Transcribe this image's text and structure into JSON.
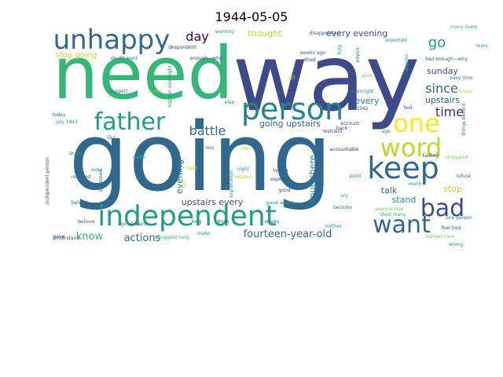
{
  "title": "1944-05-05",
  "palette": [
    "#440154",
    "#482878",
    "#3e4a89",
    "#31688e",
    "#26828e",
    "#1f9e89",
    "#35b779",
    "#6ece58",
    "#b5de2b",
    "#fde725"
  ],
  "words": [
    {
      "text": "way",
      "size": 118,
      "c": 2
    },
    {
      "text": "need",
      "size": 92,
      "c": 6
    },
    {
      "text": "going",
      "size": 120,
      "c": 3
    },
    {
      "text": "unhappy",
      "size": 34,
      "c": 3
    },
    {
      "text": "person",
      "size": 38,
      "c": 4
    },
    {
      "text": "father",
      "size": 30,
      "c": 5
    },
    {
      "text": "independent",
      "size": 36,
      "c": 5
    },
    {
      "text": "keep",
      "size": 38,
      "c": 3
    },
    {
      "text": "word",
      "size": 32,
      "c": 8
    },
    {
      "text": "one",
      "size": 32,
      "c": 9
    },
    {
      "text": "bad",
      "size": 30,
      "c": 2
    },
    {
      "text": "want",
      "size": 30,
      "c": 3
    },
    {
      "text": "since",
      "size": 16,
      "c": 3
    },
    {
      "text": "time",
      "size": 16,
      "c": 1
    },
    {
      "text": "go",
      "size": 18,
      "c": 5
    },
    {
      "text": "day",
      "size": 16,
      "c": 0
    },
    {
      "text": "battle",
      "size": 16,
      "c": 3
    },
    {
      "text": "every evening",
      "size": 11,
      "c": 2
    },
    {
      "text": "thought",
      "size": 11,
      "c": 8
    },
    {
      "text": "sunday",
      "size": 11,
      "c": 2
    },
    {
      "text": "upstairs",
      "size": 11,
      "c": 3
    },
    {
      "text": "every",
      "size": 11,
      "c": 4
    },
    {
      "text": "going upstairs",
      "size": 11,
      "c": 3
    },
    {
      "text": "evening",
      "size": 11,
      "c": 4
    },
    {
      "text": "knutschere",
      "size": 11,
      "c": 4
    },
    {
      "text": "stand",
      "size": 11,
      "c": 5
    },
    {
      "text": "stop",
      "size": 11,
      "c": 8
    },
    {
      "text": "talk",
      "size": 11,
      "c": 3
    },
    {
      "text": "upstairs every",
      "size": 11,
      "c": 2
    },
    {
      "text": "fourteen-year-old",
      "size": 13,
      "c": 3
    },
    {
      "text": "know",
      "size": 13,
      "c": 6
    },
    {
      "text": "actions",
      "size": 13,
      "c": 3
    },
    {
      "text": "stop going",
      "size": 10,
      "c": 8
    },
    {
      "text": "wanting",
      "size": 6,
      "c": 5
    },
    {
      "text": "disappointed",
      "size": 6,
      "c": 3
    },
    {
      "text": "expected",
      "size": 6,
      "c": 5
    },
    {
      "text": "many tears",
      "size": 6,
      "c": 6
    },
    {
      "text": "despondent",
      "size": 6,
      "c": 2
    },
    {
      "text": "enough—why",
      "size": 6,
      "c": 2
    },
    {
      "text": "weeks ago",
      "size": 6,
      "c": 3
    },
    {
      "text": "shed",
      "size": 6,
      "c": 2
    },
    {
      "text": "doubt want",
      "size": 6,
      "c": 4
    },
    {
      "text": "bad enough—why",
      "size": 6,
      "c": 3
    },
    {
      "text": "easy time",
      "size": 6,
      "c": 4
    },
    {
      "text": "give",
      "size": 6,
      "c": 7
    },
    {
      "text": "overnight",
      "size": 6,
      "c": 5
    },
    {
      "text": "support",
      "size": 6,
      "c": 3
    },
    {
      "text": "knew",
      "size": 6,
      "c": 7
    },
    {
      "text": "else",
      "size": 6,
      "c": 4
    },
    {
      "text": "1942",
      "size": 6,
      "c": 3
    },
    {
      "text": "account",
      "size": 6,
      "c": 2
    },
    {
      "text": "back",
      "size": 6,
      "c": 2
    },
    {
      "text": "restraint",
      "size": 6,
      "c": 2
    },
    {
      "text": "feel",
      "size": 6,
      "c": 3
    },
    {
      "text": "today",
      "size": 6,
      "c": 3
    },
    {
      "text": "july 1942",
      "size": 6,
      "c": 5
    },
    {
      "text": "like",
      "size": 6,
      "c": 4
    },
    {
      "text": "less",
      "size": 6,
      "c": 4
    },
    {
      "text": "say",
      "size": 6,
      "c": 8
    },
    {
      "text": "accountable",
      "size": 6,
      "c": 1
    },
    {
      "text": "talking",
      "size": 6,
      "c": 2
    },
    {
      "text": "struggled",
      "size": 6,
      "c": 7
    },
    {
      "text": "laugh",
      "size": 6,
      "c": 5
    },
    {
      "text": "doubt",
      "size": 6,
      "c": 6
    },
    {
      "text": "hard",
      "size": 6,
      "c": 8
    },
    {
      "text": "night",
      "size": 6,
      "c": 5
    },
    {
      "text": "telling",
      "size": 6,
      "c": 3
    },
    {
      "text": "refuse",
      "size": 6,
      "c": 4
    },
    {
      "text": "reached",
      "size": 6,
      "c": 3
    },
    {
      "text": "happen",
      "size": 6,
      "c": 8
    },
    {
      "text": "expect",
      "size": 6,
      "c": 2
    },
    {
      "text": "point",
      "size": 6,
      "c": 5
    },
    {
      "text": "much",
      "size": 6,
      "c": 4
    },
    {
      "text": "good",
      "size": 6,
      "c": 2
    },
    {
      "text": "cry",
      "size": 6,
      "c": 4
    },
    {
      "text": "behind",
      "size": 6,
      "c": 3
    },
    {
      "text": "good advice",
      "size": 6,
      "c": 5
    },
    {
      "text": "become",
      "size": 6,
      "c": 4
    },
    {
      "text": "anyone else",
      "size": 6,
      "c": 7
    },
    {
      "text": "shed many",
      "size": 6,
      "c": 6
    },
    {
      "text": "understand",
      "size": 6,
      "c": 3
    },
    {
      "text": "believe",
      "size": 6,
      "c": 3
    },
    {
      "text": "mother",
      "size": 6,
      "c": 5
    },
    {
      "text": "gave",
      "size": 6,
      "c": 2
    },
    {
      "text": "make",
      "size": 6,
      "c": 5
    },
    {
      "text": "struggled long",
      "size": 6,
      "c": 6
    },
    {
      "text": "feel bad",
      "size": 6,
      "c": 3
    },
    {
      "text": "danger care",
      "size": 6,
      "c": 7
    },
    {
      "text": "wrong",
      "size": 6,
      "c": 5
    },
    {
      "text": "think",
      "size": 6,
      "c": 3
    },
    {
      "text": "long",
      "size": 6,
      "c": 3
    },
    {
      "text": "lonely",
      "size": 6,
      "c": 8
    },
    {
      "text": "tears",
      "size": 6,
      "c": 5
    },
    {
      "text": "one person",
      "size": 6,
      "c": 4
    },
    {
      "text": "go upstairs",
      "size": 6,
      "c": 3
    },
    {
      "text": "weeks",
      "size": 6,
      "c": 3
    },
    {
      "text": "explanation",
      "size": 6,
      "c": 5
    },
    {
      "text": "supposed",
      "size": 6,
      "c": 3
    },
    {
      "text": "advice",
      "size": 6,
      "c": 3
    },
    {
      "text": "anyone",
      "size": 6,
      "c": 6
    },
    {
      "text": "independent person",
      "size": 6,
      "c": 3
    },
    {
      "text": "happen overnight",
      "size": 6,
      "c": 5
    },
    {
      "text": "things behind",
      "size": 6,
      "c": 4
    },
    {
      "text": "fully",
      "size": 6,
      "c": 5
    },
    {
      "text": "ago",
      "size": 6,
      "c": 4
    },
    {
      "text": "act",
      "size": 6,
      "c": 8
    },
    {
      "text": "easy",
      "size": 6,
      "c": 5
    },
    {
      "text": "fall",
      "size": 6,
      "c": 8
    }
  ]
}
